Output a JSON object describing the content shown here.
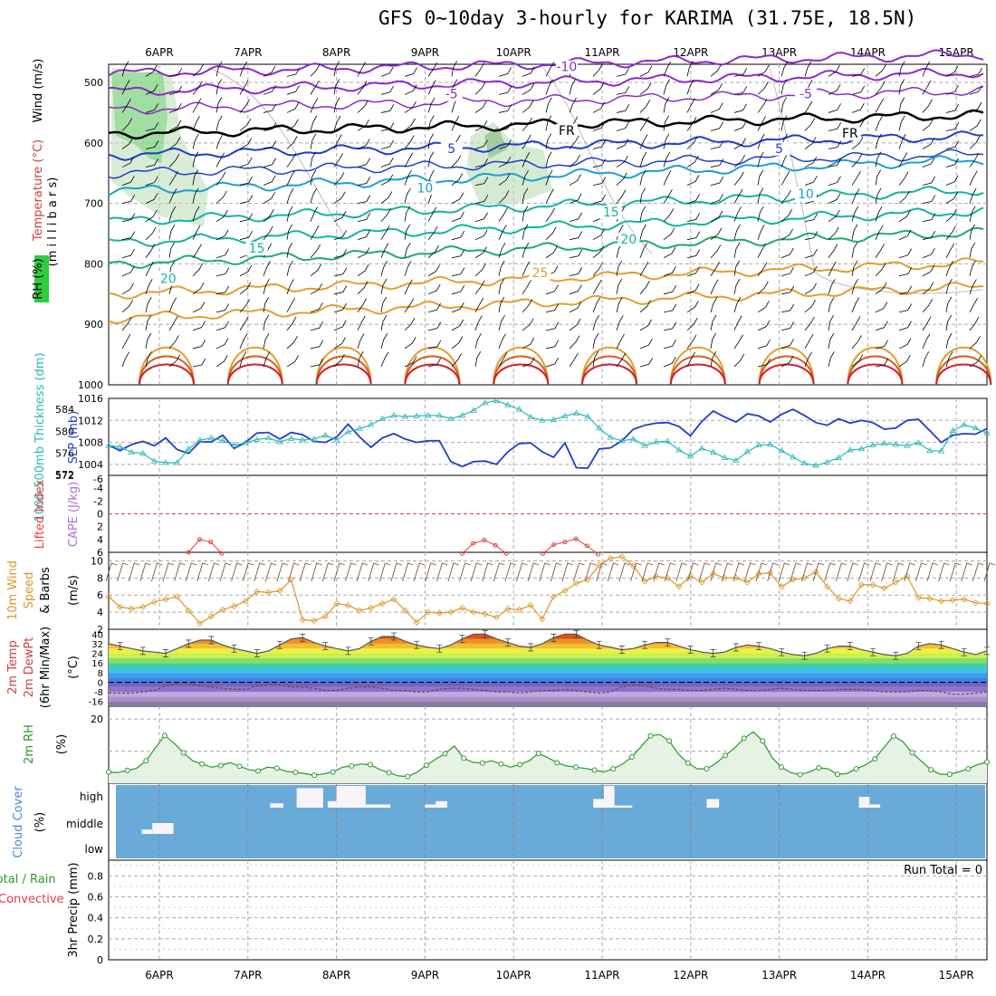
{
  "title": "GFS 0~10day 3-hourly for KARIMA (31.75E, 18.5N)",
  "run_total": "Run Total = 0",
  "colors": {
    "temp_line": "#1f3fc8",
    "thickness_line": "#2ab8b8",
    "rh_line": "#2a9a2a",
    "wind_line": "#e0962a",
    "cloud_bg": "#6aaad8",
    "lifted": "#e04040"
  },
  "chart_data": [
    {
      "type": "contour",
      "panel": "upper-air",
      "ylabel": {
        "wind": "Wind (m/s)",
        "temperature": "Temperature (°C)",
        "rh": "RH (%)",
        "pressure": "(m i l l i b a r s)"
      },
      "yticks": [
        500,
        600,
        700,
        800,
        900,
        1000
      ],
      "x_days": [
        "6APR",
        "7APR",
        "8APR",
        "9APR",
        "10APR",
        "11APR",
        "12APR",
        "13APR",
        "14APR",
        "15APR"
      ],
      "contour_labels": [
        {
          "text": "-10",
          "p": 480,
          "t": 4.6
        },
        {
          "text": "-5",
          "p": 525,
          "t": 3.3
        },
        {
          "text": "-5",
          "p": 525,
          "t": 7.3
        },
        {
          "text": "FR",
          "p": 585,
          "t": 4.6
        },
        {
          "text": "FR",
          "p": 590,
          "t": 7.8
        },
        {
          "text": "5",
          "p": 615,
          "t": 3.3
        },
        {
          "text": "5",
          "p": 615,
          "t": 7.0
        },
        {
          "text": "10",
          "p": 680,
          "t": 3.0
        },
        {
          "text": "10",
          "p": 690,
          "t": 7.3
        },
        {
          "text": "15",
          "p": 720,
          "t": 5.1
        },
        {
          "text": "15",
          "p": 780,
          "t": 1.1
        },
        {
          "text": "20",
          "p": 765,
          "t": 5.3
        },
        {
          "text": "20",
          "p": 830,
          "t": 0.1
        },
        {
          "text": "25",
          "p": 820,
          "t": 4.3
        }
      ]
    },
    {
      "type": "line",
      "panel": "slp-thickness",
      "ylabel_left": "1000-500mb Thickness (dm)",
      "ylabel_right": "SLP (mb)",
      "yticks_left": [
        572,
        576,
        580,
        584
      ],
      "yticks_right": [
        1004,
        1008,
        1012,
        1016
      ],
      "series": [
        {
          "name": "SLP",
          "values": [
            1007.5,
            1006.5,
            1007.6,
            1008.2,
            1007.4,
            1008.8,
            1006.7,
            1006.0,
            1008.1,
            1008.1,
            1009.3,
            1006.9,
            1008.0,
            1009.7,
            1009.8,
            1008.6,
            1009.8,
            1009.4,
            1008.2,
            1008.0,
            1009.0,
            1011.3,
            1009.0,
            1007.1,
            1008.8,
            1009.6,
            1008.6,
            1008.0,
            1008.3,
            1008.3,
            1004.5,
            1003.6,
            1004.5,
            1004.6,
            1004.0,
            1006.3,
            1007.8,
            1007.9,
            1006.3,
            1005.3,
            1007.9,
            1003.4,
            1003.3,
            1006.8,
            1007.0,
            1008.3,
            1010.4,
            1011.1,
            1011.5,
            1011.6,
            1010.9,
            1009.2,
            1011.8,
            1013.7,
            1012.6,
            1011.7,
            1013.2,
            1012.8,
            1011.7,
            1013.1,
            1014.0,
            1012.9,
            1011.6,
            1011.1,
            1012.3,
            1011.5,
            1012.0,
            1011.6,
            1010.4,
            1010.6,
            1012.0,
            1012.2,
            1010.1,
            1008.0,
            1009.3,
            1009.6,
            1009.5,
            1010.5
          ]
        },
        {
          "name": "Thickness",
          "values": [
            577.4,
            577.2,
            576.2,
            576.0,
            574.6,
            574.3,
            574.3,
            576.8,
            578.4,
            578.8,
            578.3,
            577.5,
            577.9,
            578.5,
            578.8,
            578.1,
            578.7,
            578.4,
            578.6,
            579.3,
            578.4,
            579.9,
            580.5,
            581.2,
            582.3,
            582.9,
            582.7,
            582.8,
            582.9,
            582.9,
            582.3,
            582.9,
            583.8,
            585.2,
            585.6,
            584.8,
            584.0,
            582.6,
            582.0,
            582.1,
            582.8,
            583.3,
            582.7,
            580.6,
            578.9,
            578.3,
            578.6,
            577.4,
            578.1,
            578.2,
            576.6,
            575.5,
            576.9,
            576.2,
            575.2,
            574.7,
            576.3,
            577.5,
            577.6,
            576.5,
            575.3,
            574.2,
            573.8,
            574.4,
            575.2,
            576.6,
            576.8,
            577.5,
            577.8,
            577.6,
            577.4,
            577.9,
            576.5,
            576.4,
            580.1,
            581.2,
            580.6,
            579.7
          ]
        }
      ]
    },
    {
      "type": "line",
      "panel": "lifted-cape",
      "ylabel": "Lifted Index",
      "ylabel2": "CAPE (J/kg)",
      "yticks": [
        "-4",
        "-2",
        "0",
        "2",
        "4",
        "6"
      ],
      "series": [
        {
          "name": "Lifted Index",
          "segments": [
            {
              "t_start": 0.33,
              "values": [
                6.0,
                4.0,
                4.4,
                6.2
              ]
            },
            {
              "t_start": 3.42,
              "values": [
                6.2,
                4.6,
                4.1,
                4.9,
                6.2
              ]
            },
            {
              "t_start": 4.33,
              "values": [
                6.2,
                4.8,
                4.4,
                3.9,
                5.0,
                6.3
              ]
            }
          ]
        }
      ]
    },
    {
      "type": "line",
      "panel": "wind10m",
      "ylabel": "10m Wind Speed & Barbs (m/s)",
      "yticks": [
        2,
        4,
        6,
        8,
        10
      ],
      "series": [
        {
          "name": "Speed",
          "values": [
            5.8,
            4.6,
            4.4,
            4.6,
            5.2,
            5.5,
            5.8,
            4.2,
            2.7,
            3.5,
            4.3,
            4.7,
            5.3,
            6.4,
            6.3,
            6.5,
            7.8,
            3.1,
            3.0,
            3.5,
            5.0,
            4.8,
            4.2,
            4.5,
            5.0,
            5.5,
            4.2,
            2.8,
            4.0,
            3.9,
            4.0,
            4.5,
            4.0,
            3.8,
            3.4,
            4.4,
            4.3,
            4.8,
            3.2,
            5.8,
            6.5,
            7.4,
            7.8,
            9.5,
            10.3,
            10.5,
            9.4,
            7.6,
            8.2,
            8.0,
            7.0,
            8.2,
            7.5,
            8.5,
            8.0,
            8.0,
            7.5,
            8.5,
            8.6,
            7.0,
            7.8,
            8.0,
            8.7,
            7.0,
            5.6,
            5.3,
            7.2,
            7.2,
            6.8,
            7.5,
            8.2,
            5.7,
            5.6,
            5.3,
            5.4,
            5.5,
            5.1,
            5.0
          ]
        }
      ]
    },
    {
      "type": "area",
      "panel": "temp2m",
      "ylabel": "2m Temp 2m DewPt (6hr Min/Max) (°C)",
      "yticks": [
        -16,
        -8,
        0,
        8,
        16,
        24,
        32,
        40
      ],
      "series": [
        {
          "name": "2m Temp",
          "values": [
            32,
            30,
            28,
            26,
            25,
            24,
            28,
            32,
            35,
            35,
            31,
            28,
            26,
            24,
            26,
            31,
            36,
            37,
            33,
            30,
            28,
            26,
            28,
            34,
            38,
            38,
            34,
            31,
            29,
            28,
            31,
            36,
            40,
            40,
            36,
            33,
            30,
            29,
            32,
            37,
            40,
            40,
            35,
            31,
            29,
            27,
            28,
            31,
            33,
            33,
            30,
            27,
            25,
            24,
            25,
            29,
            31,
            30,
            28,
            25,
            23,
            22,
            24,
            28,
            30,
            30,
            27,
            25,
            23,
            22,
            24,
            30,
            32,
            31,
            28,
            25,
            23,
            26
          ]
        },
        {
          "name": "2m DewPt",
          "values": [
            -9,
            -9,
            -9,
            -8,
            -7,
            -3,
            -1,
            -1,
            -3,
            -4,
            -5,
            -6,
            -6,
            -3,
            -2,
            -2,
            -4,
            -4,
            -5,
            -7,
            -7,
            -5,
            -4,
            -4,
            -5,
            -7,
            -7,
            -8,
            -8,
            -6,
            -5,
            -5,
            -6,
            -7,
            -8,
            -8,
            -9,
            -8,
            -7,
            -7,
            -6,
            -7,
            -8,
            -9,
            -8,
            -4,
            -2,
            -3,
            -5,
            -6,
            -6,
            -7,
            -7,
            -6,
            -5,
            -6,
            -7,
            -7,
            -6,
            -5,
            -6,
            -7,
            -7,
            -7,
            -6,
            -6,
            -6,
            -7,
            -8,
            -8,
            -8,
            -7,
            -7,
            -8,
            -10,
            -10,
            -9,
            -8
          ]
        }
      ]
    },
    {
      "type": "line",
      "panel": "rh2m",
      "ylabel": "2m RH (%)",
      "yticks": [
        20
      ],
      "series": [
        {
          "name": "2m RH",
          "values": [
            3.5,
            3.3,
            4.0,
            4.7,
            7.0,
            11.0,
            14.9,
            12.5,
            9.5,
            7.0,
            6.0,
            5.0,
            5.5,
            6.4,
            5.3,
            4.2,
            3.8,
            5.0,
            4.7,
            3.7,
            3.4,
            3.0,
            2.5,
            2.9,
            3.5,
            5.0,
            5.4,
            6.0,
            5.8,
            4.3,
            3.3,
            2.3,
            2.1,
            3.4,
            5.6,
            7.5,
            9.2,
            11.6,
            7.8,
            6.5,
            6.3,
            7.0,
            6.0,
            5.0,
            5.8,
            7.0,
            9.3,
            8.0,
            6.4,
            5.4,
            5.0,
            4.6,
            4.1,
            3.5,
            4.5,
            6.0,
            8.2,
            11.5,
            14.8,
            15.2,
            13.2,
            9.0,
            6.3,
            4.5,
            4.5,
            6.2,
            8.7,
            11.0,
            14.0,
            16.0,
            13.2,
            8.0,
            5.0,
            3.3,
            2.7,
            3.5,
            4.8,
            4.5,
            2.8,
            3.0,
            4.5,
            5.7,
            7.6,
            11.2,
            14.7,
            13.0,
            9.5,
            6.8,
            4.2,
            2.8,
            2.8,
            3.5,
            4.5,
            5.8,
            6.6
          ]
        }
      ]
    },
    {
      "type": "bar",
      "panel": "cloud",
      "ylabel": "Cloud Cover (%)",
      "levels": [
        "high",
        "middle",
        "low"
      ],
      "high_blocks": [
        {
          "t": 1.25,
          "w": 0.15,
          "v": 0.2
        },
        {
          "t": 1.55,
          "w": 0.3,
          "v": 0.9
        },
        {
          "t": 1.9,
          "w": 0.1,
          "v": 0.3
        },
        {
          "t": 2.0,
          "w": 0.33,
          "v": 1.0
        },
        {
          "t": 2.33,
          "w": 0.28,
          "v": 0.15
        },
        {
          "t": 3.0,
          "w": 0.12,
          "v": 0.15
        },
        {
          "t": 3.12,
          "w": 0.13,
          "v": 0.3
        },
        {
          "t": 4.9,
          "w": 0.12,
          "v": 0.4
        },
        {
          "t": 5.02,
          "w": 0.12,
          "v": 1.0
        },
        {
          "t": 5.14,
          "w": 0.2,
          "v": 0.1
        },
        {
          "t": 6.18,
          "w": 0.14,
          "v": 0.4
        },
        {
          "t": 7.9,
          "w": 0.12,
          "v": 0.5
        },
        {
          "t": 8.02,
          "w": 0.12,
          "v": 0.15
        }
      ],
      "middle_blocks": [
        {
          "t": 0.15,
          "w": 0.12,
          "v": 0.2
        },
        {
          "t": 0.27,
          "w": 0.12,
          "v": 0.5
        },
        {
          "t": 0.39,
          "w": 0.12,
          "v": 0.5
        }
      ]
    },
    {
      "type": "bar",
      "panel": "precip",
      "ylabel": "3hr Precip (mm)",
      "legend": [
        "Total / Rain",
        "Convective"
      ],
      "yticks": [
        0,
        0.2,
        0.4,
        0.6,
        0.8
      ],
      "values": []
    }
  ]
}
